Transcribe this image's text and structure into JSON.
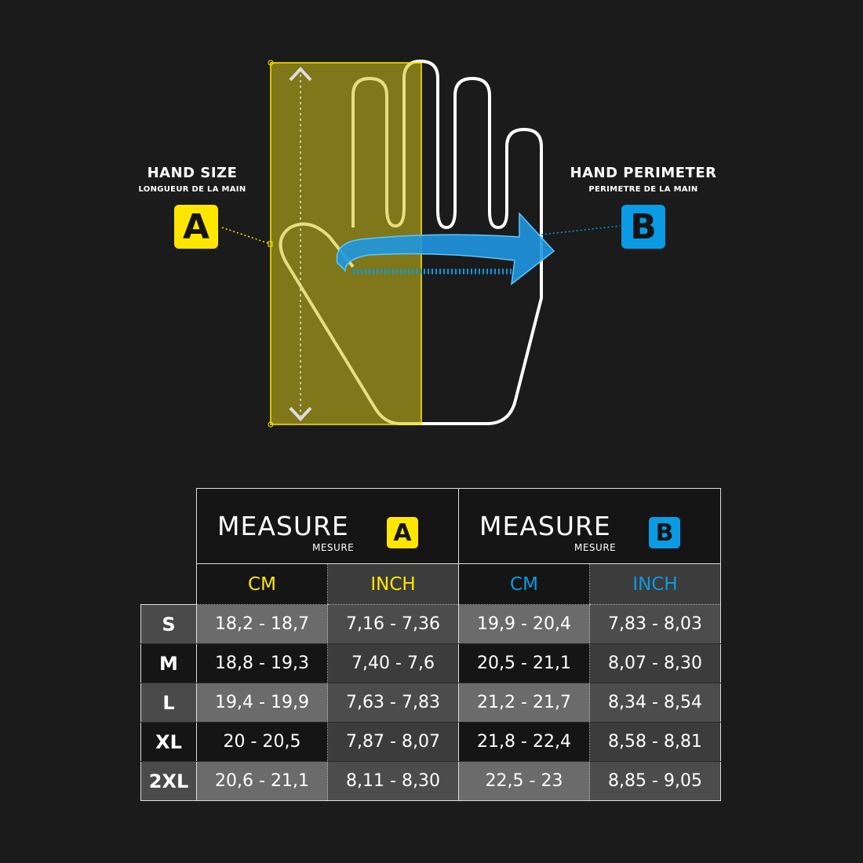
{
  "colors": {
    "accent_a": "#ffe600",
    "accent_b": "#0a9be4",
    "background": "#1b1b1b"
  },
  "hand_size": {
    "title": "HAND SIZE",
    "subtitle": "LONGUEUR DE LA MAIN",
    "badge": "A"
  },
  "hand_perimeter": {
    "title": "HAND PERIMETER",
    "subtitle": "PERIMETRE DE LA MAIN",
    "badge": "B"
  },
  "table": {
    "groups": [
      {
        "title": "MEASURE",
        "subtitle": "MESURE",
        "badge": "A"
      },
      {
        "title": "MEASURE",
        "subtitle": "MESURE",
        "badge": "B"
      }
    ],
    "units": [
      "CM",
      "INCH",
      "CM",
      "INCH"
    ],
    "rows": [
      {
        "size": "S",
        "values": [
          "18,2 - 18,7",
          "7,16 - 7,36",
          "19,9 - 20,4",
          "7,83 - 8,03"
        ]
      },
      {
        "size": "M",
        "values": [
          "18,8 - 19,3",
          "7,40 - 7,6",
          "20,5 - 21,1",
          "8,07 - 8,30"
        ]
      },
      {
        "size": "L",
        "values": [
          "19,4 - 19,9",
          "7,63 - 7,83",
          "21,2 - 21,7",
          "8,34 - 8,54"
        ]
      },
      {
        "size": "XL",
        "values": [
          "20 - 20,5",
          "7,87 - 8,07",
          "21,8 - 22,4",
          "8,58 - 8,81"
        ]
      },
      {
        "size": "2XL",
        "values": [
          "20,6 - 21,1",
          "8,11 - 8,30",
          "22,5 - 23",
          "8,85 - 9,05"
        ]
      }
    ]
  }
}
